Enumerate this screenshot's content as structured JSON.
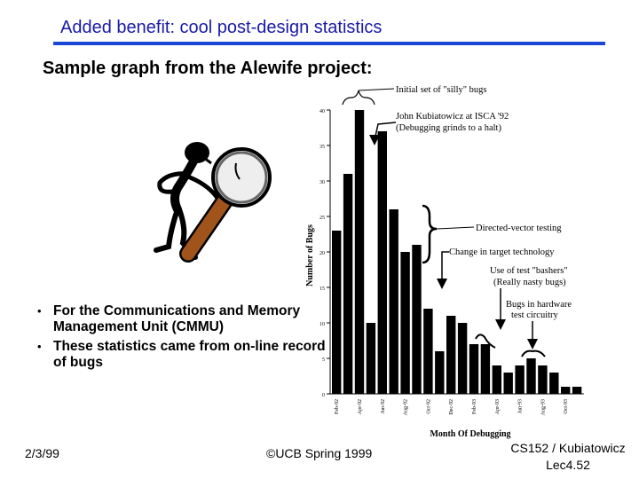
{
  "slide": {
    "title": "Added benefit: cool post-design statistics",
    "subtitle": "Sample graph from the Alewife project:",
    "bullets": [
      "For the Communications and Memory Management Unit (CMMU)",
      "These statistics came from on-line record of bugs"
    ],
    "footer": {
      "date": "2/3/99",
      "copyright": "©UCB Spring 1999",
      "course": "CS152 / Kubiatowicz",
      "lecture": "Lec4.52"
    },
    "bullet_glyph": "•",
    "mascot_icon": "magnifying-glass-figure-icon",
    "accent_color": "#1a47d6",
    "title_color": "#1a1aa8"
  },
  "chart_data": {
    "type": "bar",
    "xlabel": "Month Of Debugging",
    "ylabel": "Number of Bugs",
    "ylim": [
      0,
      40
    ],
    "yticks": [
      0,
      5,
      10,
      15,
      20,
      25,
      30,
      35,
      40
    ],
    "categories": [
      "Feb-92",
      "",
      "Apr-92",
      "",
      "Jun-92",
      "",
      "Aug-92",
      "",
      "Oct-92",
      "",
      "Dec-92",
      "",
      "Feb-93",
      "",
      "Apr-93",
      "",
      "Jun-93",
      "",
      "Aug-93",
      "",
      "Oct-93",
      ""
    ],
    "values": [
      23,
      31,
      40,
      10,
      37,
      26,
      20,
      21,
      12,
      6,
      11,
      10,
      7,
      7,
      4,
      3,
      4,
      5,
      4,
      3,
      1,
      1
    ],
    "annotations": [
      "Initial set of \"silly\" bugs",
      "John Kubiatowicz at ISCA '92",
      "(Debugging grinds to a halt)",
      "Directed-vector testing",
      "Change in target technology",
      "Use of test \"bashers\"",
      "(Really nasty bugs)",
      "Bugs in hardware",
      "test circuitry"
    ]
  }
}
